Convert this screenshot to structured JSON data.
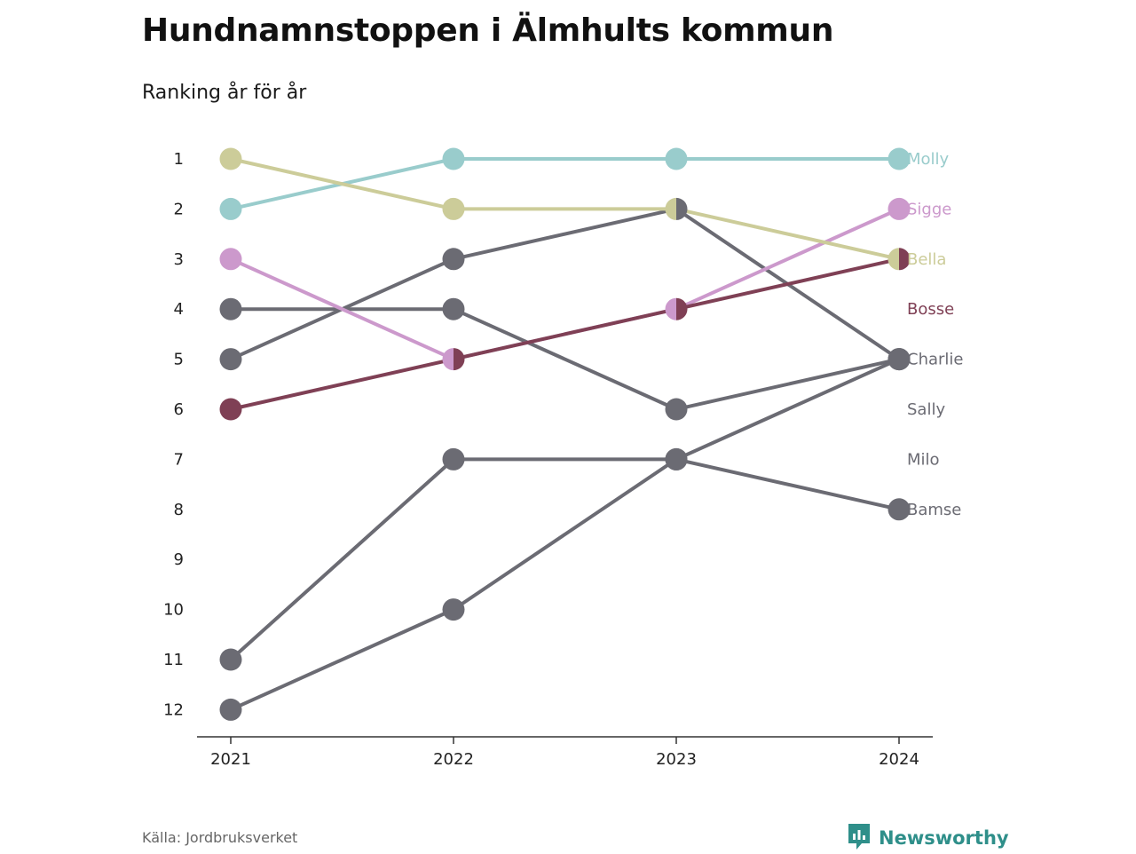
{
  "title": "Hundnamnstoppen i Älmhults kommun",
  "subtitle": "Ranking år för år",
  "source": "Källa: Jordbruksverket",
  "brand": {
    "name": "Newsworthy",
    "color": "#2f8f8a",
    "icon": "bar-chart-speech-bubble-icon"
  },
  "chart_data": {
    "type": "line",
    "subtype": "bump-chart",
    "x": [
      "2021",
      "2022",
      "2023",
      "2024"
    ],
    "y_ticks": [
      "1",
      "2",
      "3",
      "4",
      "5",
      "6",
      "7",
      "8",
      "9",
      "10",
      "11",
      "12"
    ],
    "ylim": [
      1,
      12
    ],
    "y_inverted": true,
    "grid": false,
    "series": [
      {
        "name": "Molly",
        "values": [
          2,
          1,
          1,
          1
        ],
        "color": "#99cccc"
      },
      {
        "name": "Sigge",
        "values": [
          3,
          5,
          4,
          2
        ],
        "color": "#cc99cc"
      },
      {
        "name": "Bella",
        "values": [
          1,
          2,
          2,
          3
        ],
        "color": "#cccc99"
      },
      {
        "name": "Bosse",
        "values": [
          6,
          5,
          4,
          3
        ],
        "color": "#7f4055"
      },
      {
        "name": "Charlie",
        "values": [
          5,
          3,
          2,
          5
        ],
        "color": "#6b6b73"
      },
      {
        "name": "Sally",
        "values": [
          4,
          4,
          6,
          5
        ],
        "color": "#6b6b73"
      },
      {
        "name": "Milo",
        "values": [
          12,
          10,
          7,
          5
        ],
        "color": "#6b6b73"
      },
      {
        "name": "Bamse",
        "values": [
          11,
          7,
          7,
          8
        ],
        "color": "#6b6b73"
      }
    ],
    "labels_at_last_point": [
      {
        "name": "Molly",
        "rank": 1,
        "color": "#99cccc"
      },
      {
        "name": "Sigge",
        "rank": 2,
        "color": "#cc99cc"
      },
      {
        "name": "Bella",
        "rank": 3,
        "color": "#cccc99"
      },
      {
        "name": "Bosse",
        "rank": 4,
        "color": "#7f4055"
      },
      {
        "name": "Charlie",
        "rank": 5,
        "color": "#6b6b73"
      },
      {
        "name": "Sally",
        "rank": 6,
        "color": "#6b6b73"
      },
      {
        "name": "Milo",
        "rank": 7,
        "color": "#6b6b73"
      },
      {
        "name": "Bamse",
        "rank": 8,
        "color": "#6b6b73"
      }
    ]
  }
}
